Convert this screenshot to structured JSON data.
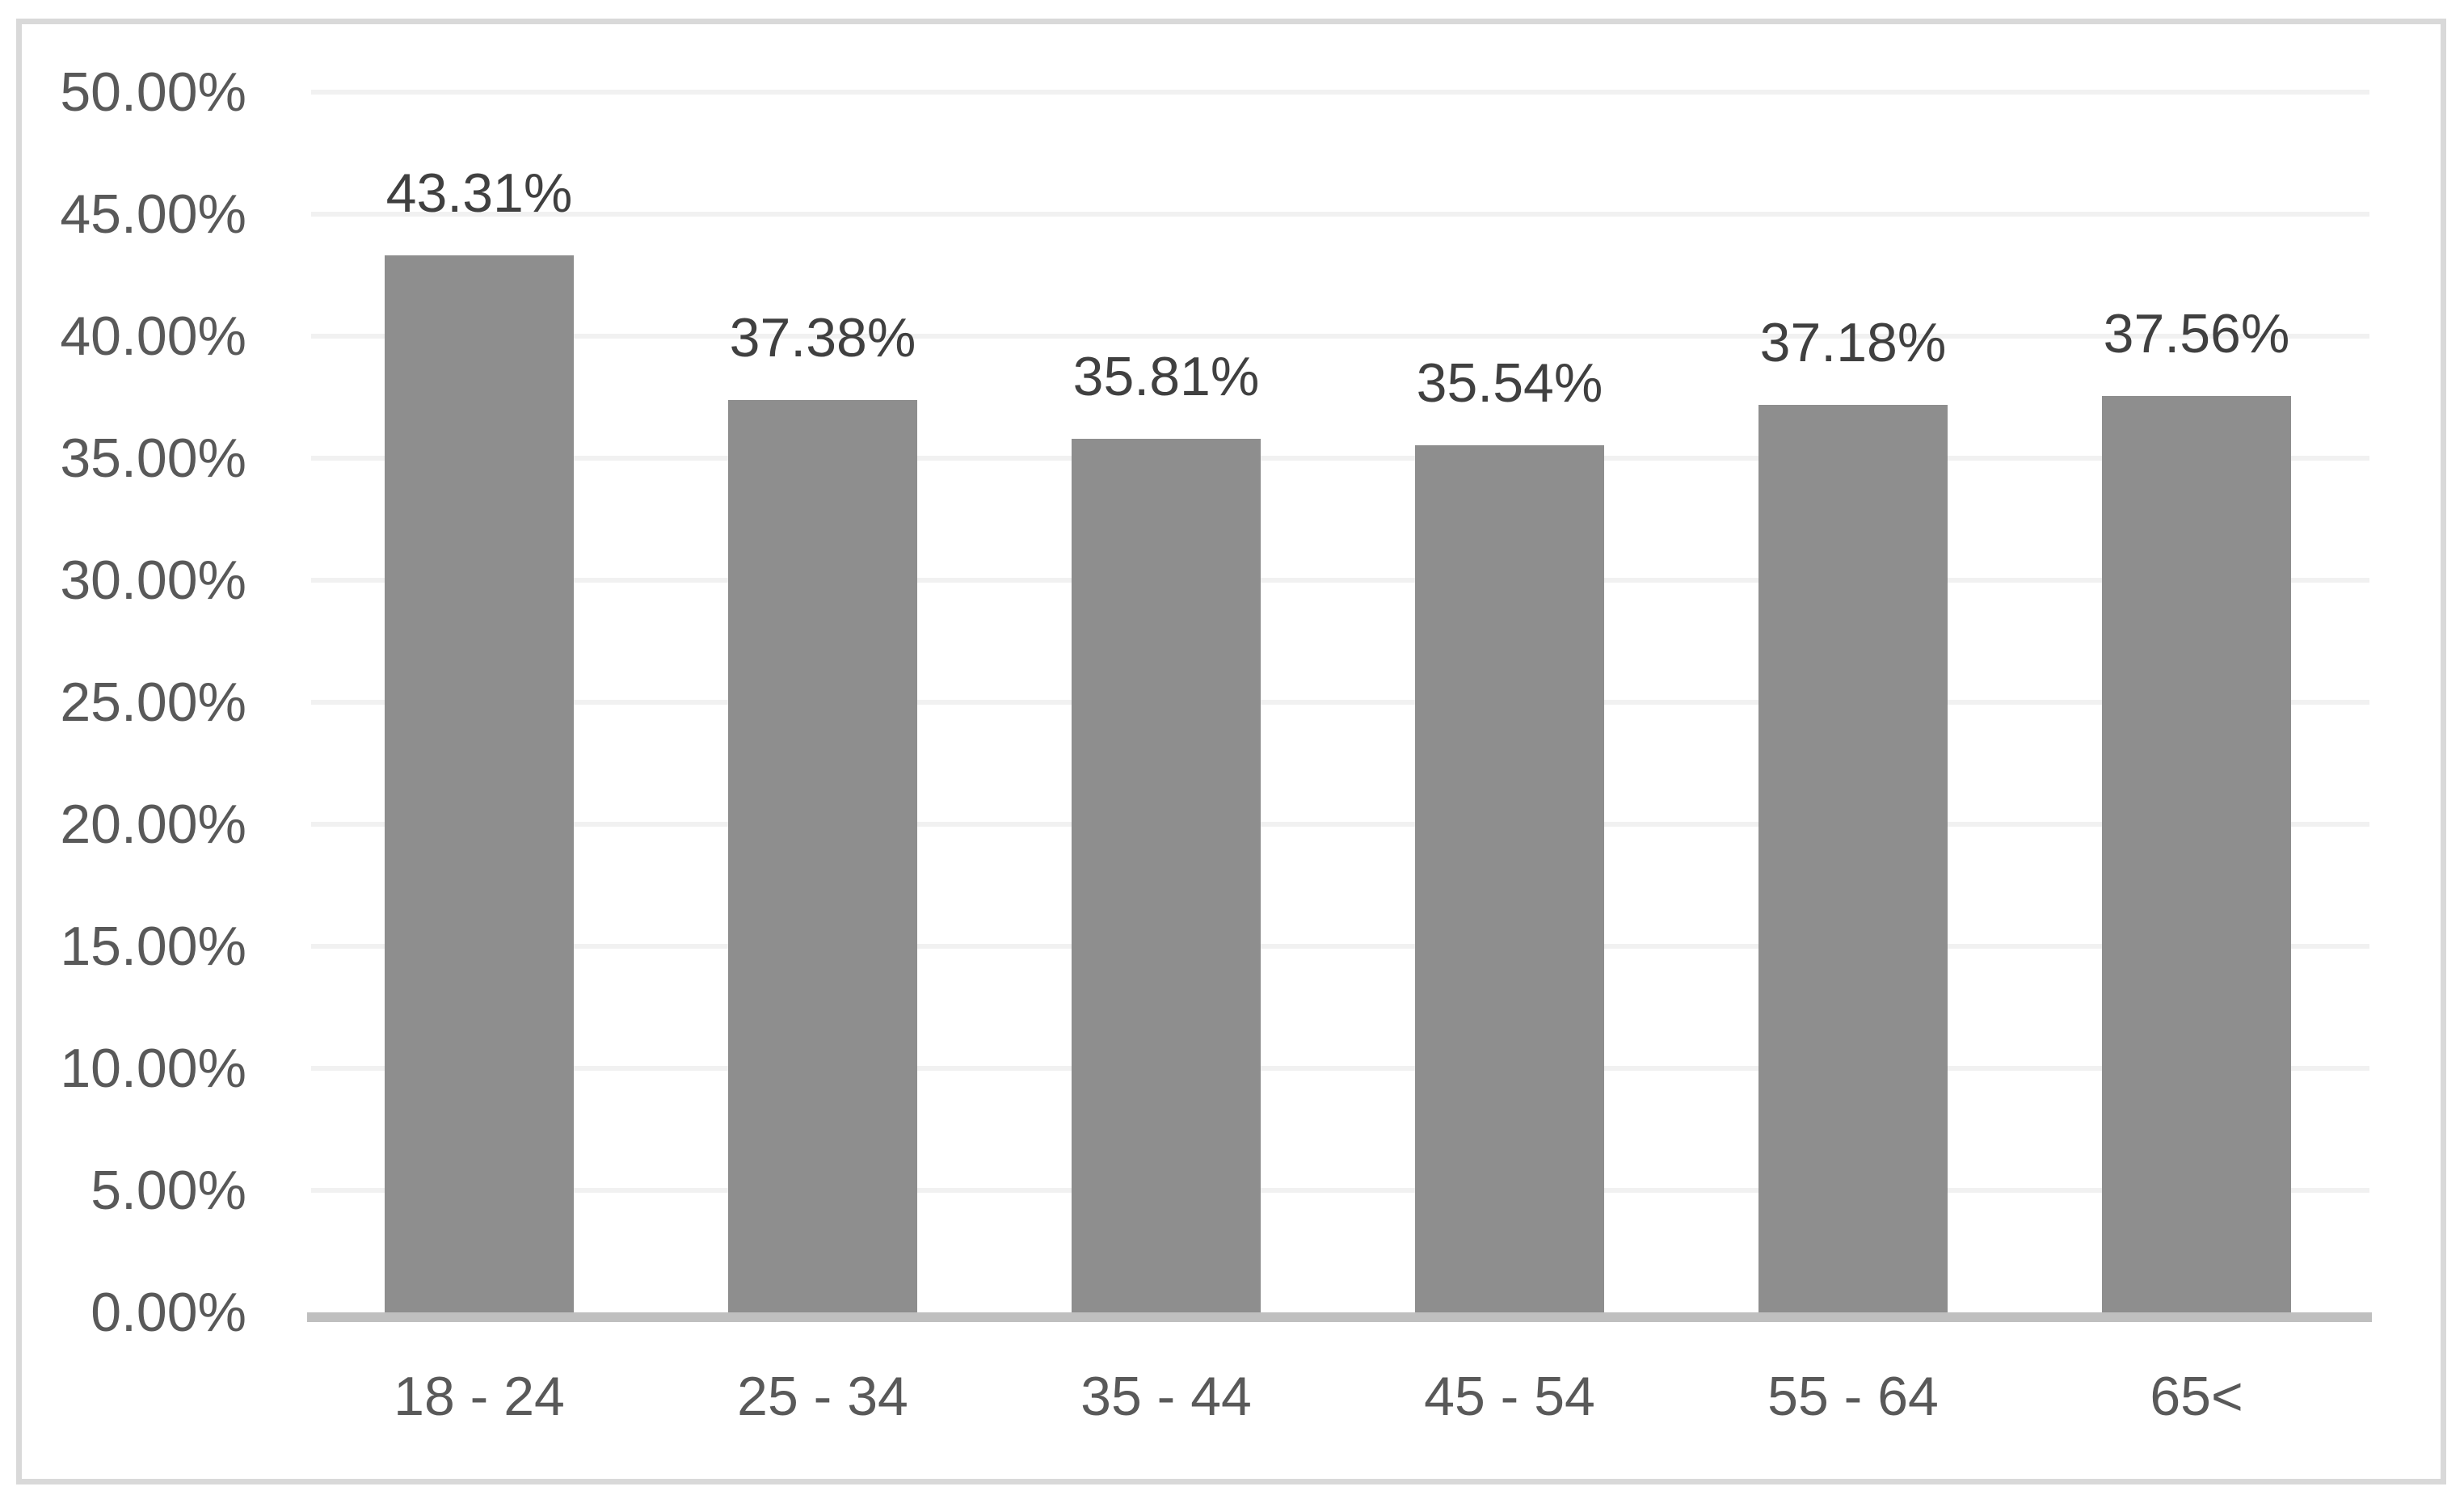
{
  "chart_data": {
    "type": "bar",
    "title": "",
    "xlabel": "",
    "ylabel": "",
    "categories": [
      "18 - 24",
      "25 - 34",
      "35 - 44",
      "45 - 54",
      "55 - 64",
      "65<"
    ],
    "values": [
      43.31,
      37.38,
      35.81,
      35.54,
      37.18,
      37.56
    ],
    "data_labels": [
      "43.31%",
      "37.38%",
      "35.81%",
      "35.54%",
      "37.18%",
      "37.56%"
    ],
    "y_ticks": [
      "0.00%",
      "5.00%",
      "10.00%",
      "15.00%",
      "20.00%",
      "25.00%",
      "30.00%",
      "35.00%",
      "40.00%",
      "45.00%",
      "50.00%"
    ],
    "y_tick_values": [
      0,
      5,
      10,
      15,
      20,
      25,
      30,
      35,
      40,
      45,
      50
    ],
    "ylim": [
      0,
      50
    ],
    "grid": true,
    "legend": false,
    "colors": {
      "bar": "#8E8E8E",
      "gridline": "#F1F1F1",
      "axis_line": "#BFBFBF",
      "y_tick_label": "#595959",
      "data_label": "#404040",
      "category_label": "#595959",
      "frame_border": "#D9D9D9",
      "background": "#FFFFFF"
    }
  }
}
